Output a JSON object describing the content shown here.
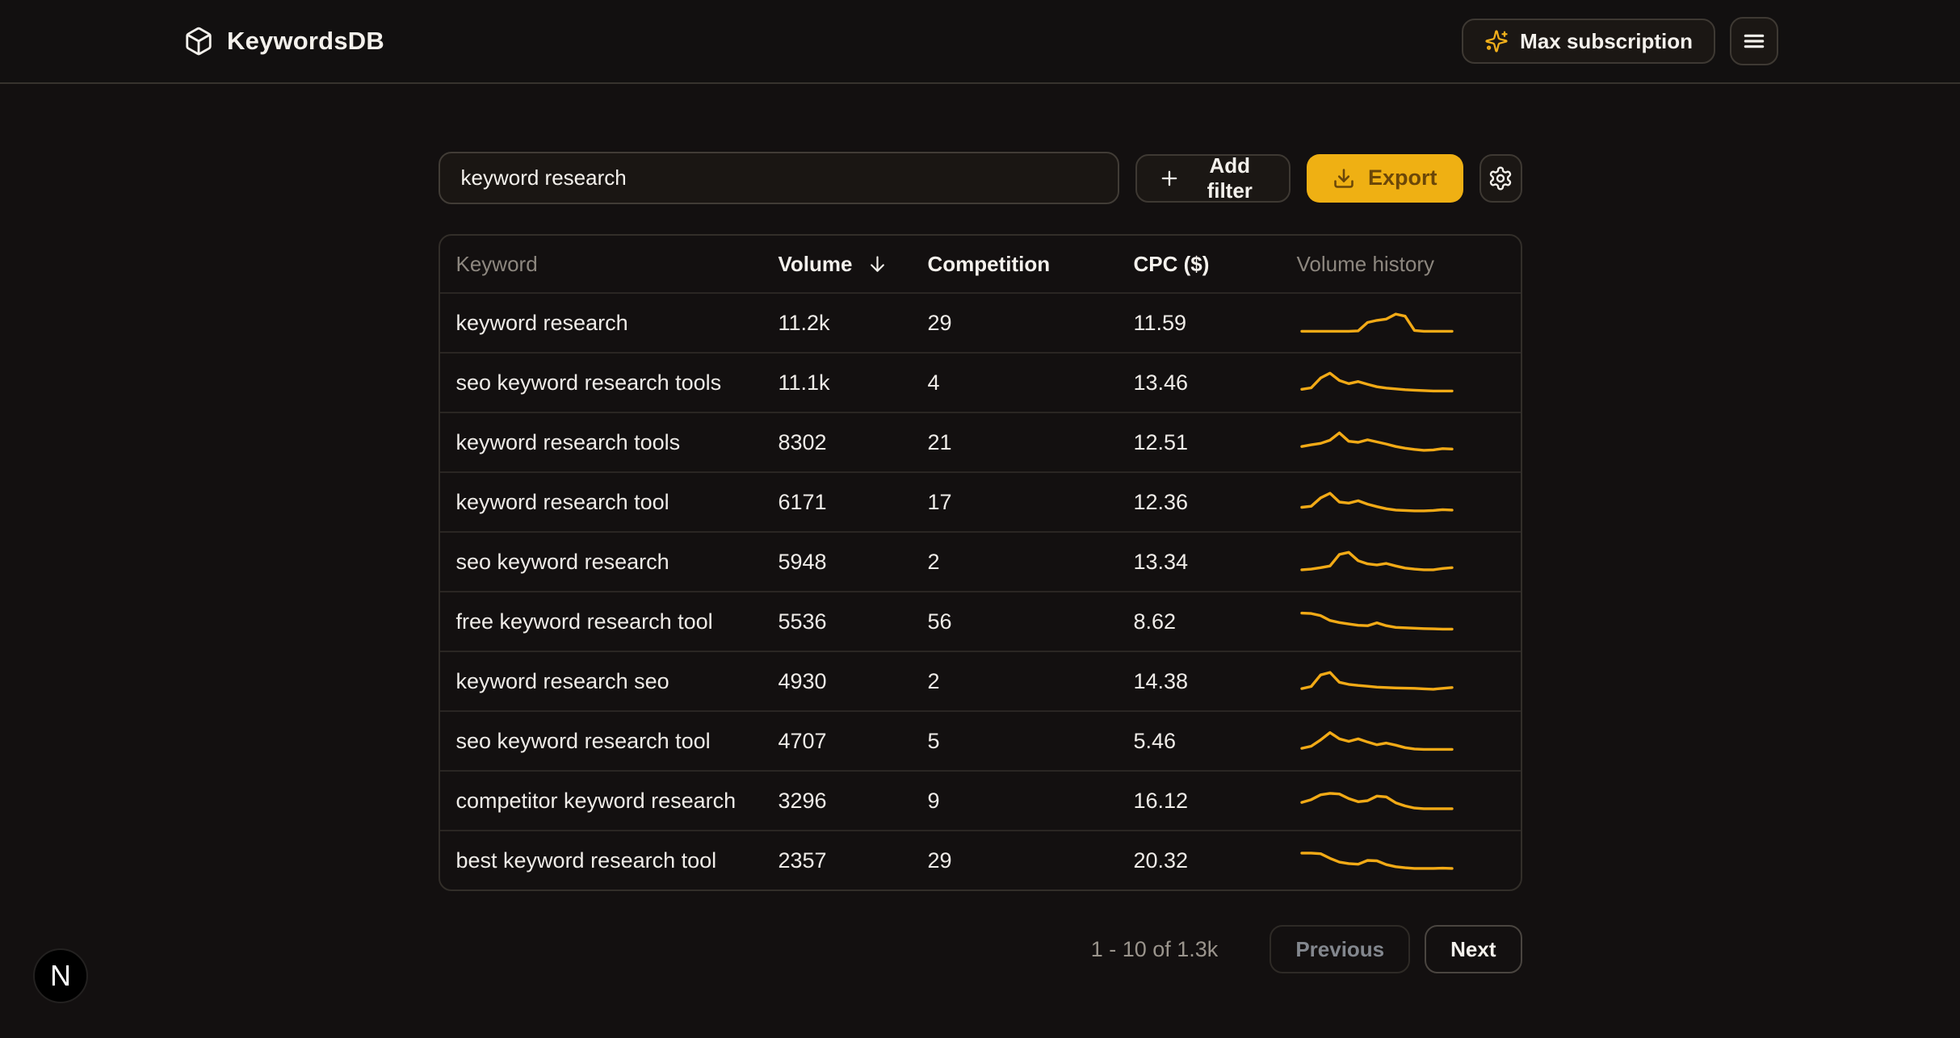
{
  "header": {
    "brand": "KeywordsDB",
    "subscription_label": "Max subscription"
  },
  "toolbar": {
    "search_value": "keyword research",
    "add_filter_label": "Add filter",
    "export_label": "Export"
  },
  "table": {
    "columns": [
      {
        "label": "Keyword",
        "muted": true,
        "sorted": false
      },
      {
        "label": "Volume",
        "muted": false,
        "sorted": true
      },
      {
        "label": "Competition",
        "muted": false,
        "sorted": false
      },
      {
        "label": "CPC ($)",
        "muted": false,
        "sorted": false
      },
      {
        "label": "Volume history",
        "muted": true,
        "sorted": false
      }
    ],
    "sort_direction": "desc",
    "rows": [
      {
        "keyword": "keyword research",
        "volume": "11.2k",
        "competition": "29",
        "cpc": "11.59",
        "spark": [
          0.1,
          0.1,
          0.1,
          0.1,
          0.1,
          0.1,
          0.12,
          0.52,
          0.62,
          0.68,
          0.92,
          0.82,
          0.14,
          0.1,
          0.1,
          0.1,
          0.1
        ]
      },
      {
        "keyword": "seo keyword research tools",
        "volume": "11.1k",
        "competition": "4",
        "cpc": "13.46",
        "spark": [
          0.18,
          0.25,
          0.72,
          0.95,
          0.6,
          0.45,
          0.55,
          0.42,
          0.3,
          0.24,
          0.2,
          0.16,
          0.14,
          0.12,
          0.1,
          0.1,
          0.1
        ]
      },
      {
        "keyword": "keyword research tools",
        "volume": "8302",
        "competition": "21",
        "cpc": "12.51",
        "spark": [
          0.3,
          0.38,
          0.45,
          0.6,
          0.95,
          0.55,
          0.5,
          0.62,
          0.52,
          0.42,
          0.3,
          0.22,
          0.16,
          0.12,
          0.14,
          0.2,
          0.18
        ]
      },
      {
        "keyword": "keyword research tool",
        "volume": "6171",
        "competition": "17",
        "cpc": "12.36",
        "spark": [
          0.25,
          0.3,
          0.7,
          0.92,
          0.5,
          0.45,
          0.56,
          0.4,
          0.28,
          0.18,
          0.12,
          0.1,
          0.08,
          0.08,
          0.1,
          0.14,
          0.12
        ]
      },
      {
        "keyword": "seo keyword research",
        "volume": "5948",
        "competition": "2",
        "cpc": "13.34",
        "spark": [
          0.12,
          0.15,
          0.22,
          0.3,
          0.85,
          0.95,
          0.55,
          0.4,
          0.35,
          0.42,
          0.3,
          0.2,
          0.15,
          0.12,
          0.12,
          0.18,
          0.22
        ]
      },
      {
        "keyword": "free keyword research tool",
        "volume": "5536",
        "competition": "56",
        "cpc": "8.62",
        "spark": [
          0.9,
          0.88,
          0.78,
          0.55,
          0.45,
          0.38,
          0.32,
          0.3,
          0.44,
          0.3,
          0.22,
          0.2,
          0.18,
          0.16,
          0.15,
          0.14,
          0.14
        ]
      },
      {
        "keyword": "keyword research seo",
        "volume": "4930",
        "competition": "2",
        "cpc": "14.38",
        "spark": [
          0.15,
          0.25,
          0.8,
          0.92,
          0.45,
          0.35,
          0.3,
          0.26,
          0.22,
          0.2,
          0.18,
          0.17,
          0.16,
          0.14,
          0.12,
          0.16,
          0.2
        ]
      },
      {
        "keyword": "seo keyword research tool",
        "volume": "4707",
        "competition": "5",
        "cpc": "5.46",
        "spark": [
          0.15,
          0.25,
          0.55,
          0.9,
          0.6,
          0.48,
          0.6,
          0.45,
          0.32,
          0.4,
          0.3,
          0.18,
          0.12,
          0.1,
          0.1,
          0.1,
          0.1
        ]
      },
      {
        "keyword": "competitor keyword research",
        "volume": "3296",
        "competition": "9",
        "cpc": "16.12",
        "spark": [
          0.42,
          0.55,
          0.78,
          0.85,
          0.82,
          0.6,
          0.45,
          0.5,
          0.72,
          0.68,
          0.4,
          0.25,
          0.15,
          0.12,
          0.12,
          0.12,
          0.12
        ]
      },
      {
        "keyword": "best keyword research tool",
        "volume": "2357",
        "competition": "29",
        "cpc": "20.32",
        "spark": [
          0.85,
          0.85,
          0.82,
          0.6,
          0.42,
          0.35,
          0.32,
          0.5,
          0.48,
          0.3,
          0.2,
          0.15,
          0.12,
          0.12,
          0.12,
          0.13,
          0.12
        ]
      }
    ]
  },
  "pagination": {
    "range_label": "1 - 10 of 1.3k",
    "previous_label": "Previous",
    "next_label": "Next"
  },
  "dev_badge": {
    "label": "N"
  },
  "colors": {
    "bg": "#131010",
    "header_bg": "#121010",
    "hairline": "#37332E",
    "text": "#F4F1EC",
    "muted": "#8D877F",
    "accent": "#EFB013",
    "accent_text": "#6B4708",
    "sparkline": "#F2AA16",
    "button_bg": "#1B1714",
    "button_border": "#3E3933"
  }
}
